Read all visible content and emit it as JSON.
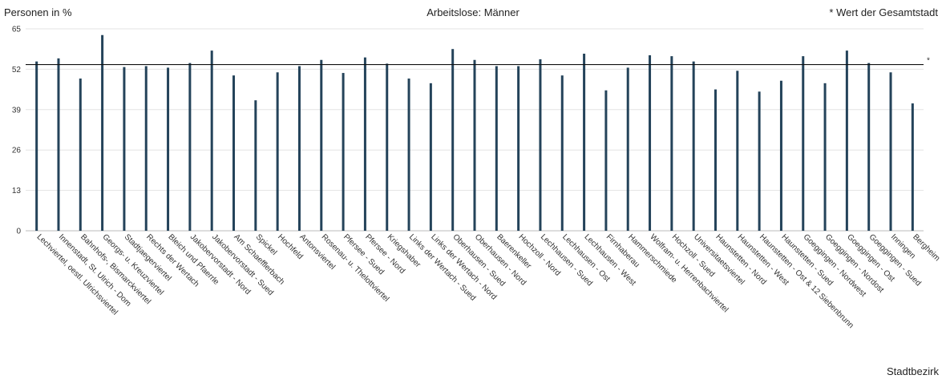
{
  "chart_data": {
    "type": "bar",
    "title": "Arbeitslose: Männer",
    "ylabel": "Personen in %",
    "xlabel": "Stadtbezirk",
    "note": "* Wert der Gesamtstadt",
    "reference_marker": "*",
    "reference_value": 53.5,
    "ylim": [
      0,
      65
    ],
    "yticks": [
      0,
      13,
      26,
      39,
      52,
      65
    ],
    "grid": true,
    "bar_color": "#24435a",
    "categories": [
      "Lechviertel, oestl. Ulrichsviertel",
      "Innenstadt, St. Ulrich - Dom",
      "Bahnhofs-, Bismarckviertel",
      "Georgs- u. Kreuzviertel",
      "Stadtjaegerviertel",
      "Rechts der Wertach",
      "Bleich und Pfaerrle",
      "Jakobervorstadt - Nord",
      "Jakobervorstadt - Sued",
      "Am Schaefflerbach",
      "Spickel",
      "Hochfeld",
      "Antonsviertel",
      "Rosenau- u. Thelottviertel",
      "Pfersee - Sued",
      "Pfersee - Nord",
      "Kriegshaber",
      "Links der Wertach - Sued",
      "Links der Wertach - Nord",
      "Oberhausen - Sued",
      "Oberhausen - Nord",
      "Baerenkeller",
      "Hochzoll - Nord",
      "Lechhausen - Sued",
      "Lechhausen - Ost",
      "Lechhausen - West",
      "Firnhaberau",
      "Hammerschmiede",
      "Wolfram- u. Herrenbachviertel",
      "Hochzoll - Sued",
      "Universitaetsviertel",
      "Haunstetten - Nord",
      "Haunstetten - West",
      "Haunstetten - Ost & 12 Siebenbrunn",
      "Haunstetten - Sued",
      "Goeggingen - Nordwest",
      "Goeggingen - Nordost",
      "Goeggingen - Ost",
      "Goeggingen - Sued",
      "Inningen",
      "Bergheim"
    ],
    "values": [
      54.5,
      55.5,
      49.0,
      63.0,
      52.7,
      53.0,
      52.5,
      54.0,
      58.0,
      50.0,
      42.0,
      51.0,
      53.0,
      55.0,
      50.8,
      55.8,
      53.8,
      49.0,
      47.5,
      58.5,
      55.0,
      53.0,
      53.0,
      55.2,
      50.0,
      57.0,
      45.2,
      52.5,
      56.5,
      56.2,
      54.5,
      45.5,
      51.5,
      44.8,
      48.3,
      56.2,
      47.5,
      58.0,
      54.0,
      51.0,
      41.0
    ]
  }
}
